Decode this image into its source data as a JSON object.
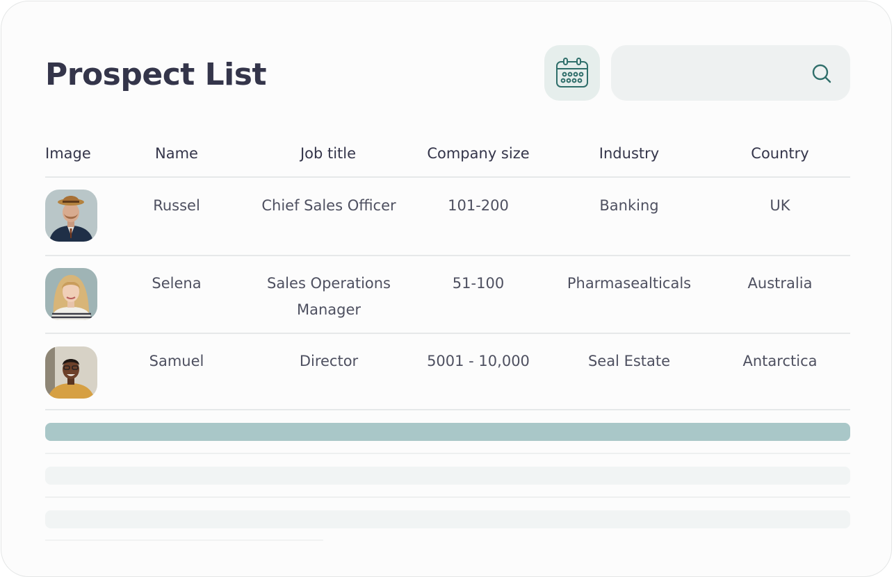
{
  "page": {
    "title": "Prospect List"
  },
  "toolbar": {
    "calendar_icon": "calendar-icon",
    "search": {
      "placeholder": "",
      "value": "",
      "icon": "search-icon"
    }
  },
  "table": {
    "headers": [
      "Image",
      "Name",
      "Job title",
      "Company size",
      "Industry",
      "Country"
    ],
    "rows": [
      {
        "name": "Russel",
        "job_title": "Chief Sales Officer",
        "company_size": "101-200",
        "industry": "Banking",
        "country": "UK"
      },
      {
        "name": "Selena",
        "job_title": "Sales Operations Manager",
        "company_size": "51-100",
        "industry": "Pharmasealticals",
        "country": "Australia"
      },
      {
        "name": "Samuel",
        "job_title": "Director",
        "company_size": "5001 - 10,000",
        "industry": "Seal Estate",
        "country": "Antarctica"
      }
    ]
  },
  "colors": {
    "accent": "#a9c7c8",
    "title": "#34354a",
    "icon": "#2f6e6a",
    "skeleton": "#f1f4f4"
  }
}
